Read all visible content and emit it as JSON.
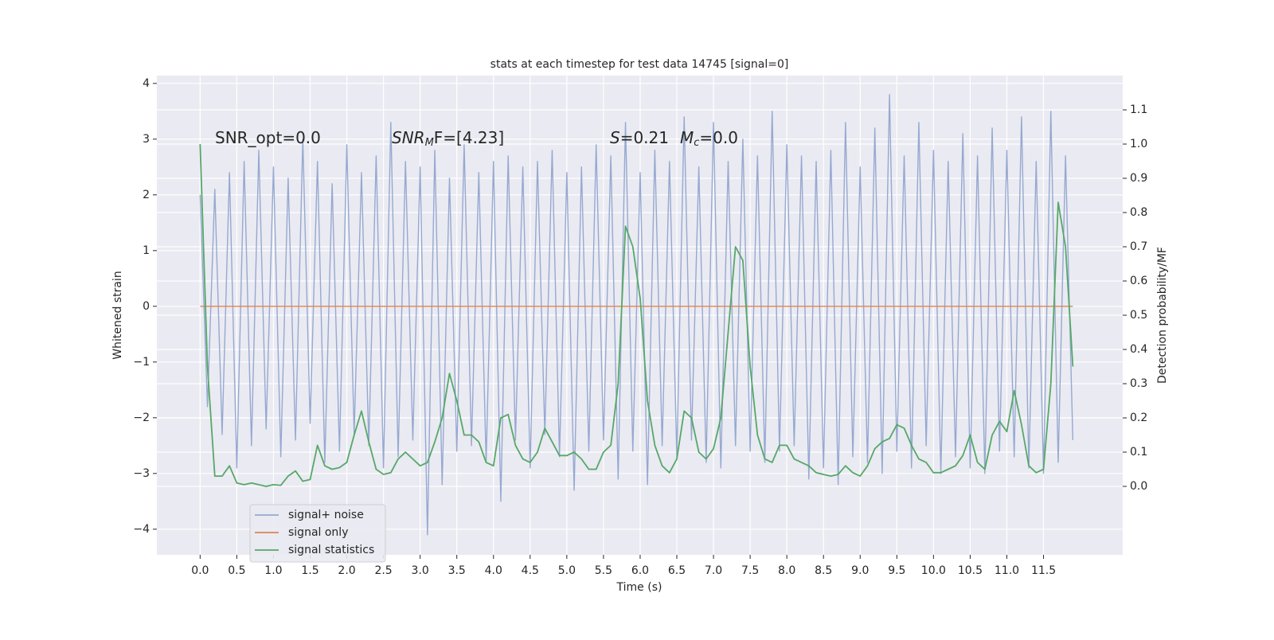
{
  "chart_data": {
    "type": "line",
    "title": "stats at each timestep for test data 14745 [signal=0]",
    "xlabel": "Time (s)",
    "ylabel": "Whitened strain",
    "y2label": "Detection probability/MF",
    "annotations": [
      [
        "SNR_opt=0.0"
      ],
      [
        "SNR",
        "M",
        "F=[4.23]"
      ],
      [
        "S",
        "=0.21",
        "M",
        "c",
        "=0.0"
      ]
    ],
    "grid": true,
    "legend": "lower left",
    "xlim": [
      -0.59,
      12.58
    ],
    "ylim": [
      -4.46,
      4.14
    ],
    "y2lim": [
      -0.2,
      1.2
    ],
    "xticks": [
      {
        "value": 0,
        "label": "0.0"
      },
      {
        "value": 0.5,
        "label": "0.5"
      },
      {
        "value": 1,
        "label": "1.0"
      },
      {
        "value": 1.5,
        "label": "1.5"
      },
      {
        "value": 2,
        "label": "2.0"
      },
      {
        "value": 2.5,
        "label": "2.5"
      },
      {
        "value": 3,
        "label": "3.0"
      },
      {
        "value": 3.5,
        "label": "3.5"
      },
      {
        "value": 4,
        "label": "4.0"
      },
      {
        "value": 4.5,
        "label": "4.5"
      },
      {
        "value": 5,
        "label": "5.0"
      },
      {
        "value": 5.5,
        "label": "5.5"
      },
      {
        "value": 6,
        "label": "6.0"
      },
      {
        "value": 6.5,
        "label": "6.5"
      },
      {
        "value": 7,
        "label": "7.0"
      },
      {
        "value": 7.5,
        "label": "7.5"
      },
      {
        "value": 8,
        "label": "8.0"
      },
      {
        "value": 8.5,
        "label": "8.5"
      },
      {
        "value": 9,
        "label": "9.0"
      },
      {
        "value": 9.5,
        "label": "9.5"
      },
      {
        "value": 10,
        "label": "10.0"
      },
      {
        "value": 10.5,
        "label": "10.5"
      },
      {
        "value": 11,
        "label": "11.0"
      },
      {
        "value": 11.5,
        "label": "11.5"
      }
    ],
    "yticks": [
      {
        "value": -4,
        "label": "−4"
      },
      {
        "value": -3,
        "label": "−3"
      },
      {
        "value": -2,
        "label": "−2"
      },
      {
        "value": -1,
        "label": "−1"
      },
      0,
      1,
      2,
      3,
      4
    ],
    "y2ticks": [
      {
        "value": 0,
        "label": "0.0"
      },
      {
        "value": 0.1,
        "label": "0.1"
      },
      {
        "value": 0.2,
        "label": "0.2"
      },
      {
        "value": 0.3,
        "label": "0.3"
      },
      {
        "value": 0.4,
        "label": "0.4"
      },
      {
        "value": 0.5,
        "label": "0.5"
      },
      {
        "value": 0.6,
        "label": "0.6"
      },
      {
        "value": 0.7,
        "label": "0.7"
      },
      {
        "value": 0.8,
        "label": "0.8"
      },
      {
        "value": 0.9,
        "label": "0.9"
      },
      {
        "value": 1,
        "label": "1.0"
      },
      {
        "value": 1.1,
        "label": "1.1"
      }
    ],
    "x": [
      0,
      0.1,
      0.2,
      0.3,
      0.4,
      0.5,
      0.6,
      0.7,
      0.8,
      0.9,
      1,
      1.1,
      1.2,
      1.3,
      1.4,
      1.5,
      1.6,
      1.7,
      1.8,
      1.9,
      2,
      2.1,
      2.2,
      2.3,
      2.4,
      2.5,
      2.6,
      2.7,
      2.8,
      2.9,
      3,
      3.1,
      3.2,
      3.3,
      3.4,
      3.5,
      3.6,
      3.7,
      3.8,
      3.9,
      4,
      4.1,
      4.2,
      4.3,
      4.4,
      4.5,
      4.6,
      4.7,
      4.8,
      4.9,
      5,
      5.1,
      5.2,
      5.3,
      5.4,
      5.5,
      5.6,
      5.7,
      5.8,
      5.9,
      6,
      6.1,
      6.2,
      6.3,
      6.4,
      6.5,
      6.6,
      6.7,
      6.8,
      6.9,
      7,
      7.1,
      7.2,
      7.3,
      7.4,
      7.5,
      7.6,
      7.7,
      7.8,
      7.9,
      8,
      8.1,
      8.2,
      8.3,
      8.4,
      8.5,
      8.6,
      8.7,
      8.8,
      8.9,
      9,
      9.1,
      9.2,
      9.3,
      9.4,
      9.5,
      9.6,
      9.7,
      9.8,
      9.9,
      10,
      10.1,
      10.2,
      10.3,
      10.4,
      10.5,
      10.6,
      10.7,
      10.8,
      10.9,
      11,
      11.1,
      11.2,
      11.3,
      11.4,
      11.5,
      11.6,
      11.7,
      11.8,
      11.9
    ],
    "series": [
      {
        "name": "signal+ noise",
        "color": "#96a9d0",
        "axis": "y",
        "values": [
          2.0,
          -1.8,
          2.1,
          -2.3,
          2.4,
          -2.9,
          2.6,
          -2.5,
          2.8,
          -2.2,
          2.5,
          -2.7,
          2.3,
          -2.4,
          3.0,
          -2.1,
          2.6,
          -2.8,
          2.2,
          -2.6,
          2.9,
          -2.3,
          2.4,
          -2.5,
          2.7,
          -2.9,
          3.3,
          -2.7,
          2.6,
          -2.4,
          2.5,
          -4.1,
          2.8,
          -3.2,
          2.3,
          -2.6,
          2.9,
          -2.5,
          2.4,
          -2.8,
          2.6,
          -3.5,
          2.7,
          -2.4,
          2.5,
          -2.9,
          2.6,
          -2.3,
          2.8,
          -2.7,
          2.4,
          -3.3,
          2.5,
          -2.6,
          2.9,
          -2.4,
          2.7,
          -3.1,
          3.3,
          -2.6,
          2.4,
          -3.2,
          2.8,
          -2.5,
          2.6,
          -2.7,
          3.4,
          -2.4,
          2.5,
          -2.8,
          3.3,
          -2.9,
          2.6,
          -2.5,
          3.0,
          -2.6,
          2.7,
          -2.8,
          3.5,
          -2.6,
          2.9,
          -2.5,
          2.7,
          -3.1,
          2.6,
          -2.9,
          2.8,
          -3.2,
          3.3,
          -2.7,
          2.5,
          -2.8,
          3.2,
          -3.0,
          3.8,
          -2.6,
          2.7,
          -2.9,
          3.3,
          -2.5,
          2.8,
          -3.0,
          2.6,
          -2.7,
          3.1,
          -2.9,
          2.7,
          -3.0,
          3.2,
          -2.6,
          2.8,
          -2.7,
          3.4,
          -2.9,
          2.6,
          -3.0,
          3.5,
          -2.8,
          2.7,
          -2.4
        ]
      },
      {
        "name": "signal only",
        "color": "#dd8452",
        "axis": "y",
        "values": [
          0,
          0,
          0,
          0,
          0,
          0,
          0,
          0,
          0,
          0,
          0,
          0,
          0,
          0,
          0,
          0,
          0,
          0,
          0,
          0,
          0,
          0,
          0,
          0,
          0,
          0,
          0,
          0,
          0,
          0,
          0,
          0,
          0,
          0,
          0,
          0,
          0,
          0,
          0,
          0,
          0,
          0,
          0,
          0,
          0,
          0,
          0,
          0,
          0,
          0,
          0,
          0,
          0,
          0,
          0,
          0,
          0,
          0,
          0,
          0,
          0,
          0,
          0,
          0,
          0,
          0,
          0,
          0,
          0,
          0,
          0,
          0,
          0,
          0,
          0,
          0,
          0,
          0,
          0,
          0,
          0,
          0,
          0,
          0,
          0,
          0,
          0,
          0,
          0,
          0,
          0,
          0,
          0,
          0,
          0,
          0,
          0,
          0,
          0,
          0,
          0,
          0,
          0,
          0,
          0,
          0,
          0,
          0,
          0,
          0,
          0,
          0,
          0,
          0,
          0,
          0,
          0,
          0,
          0,
          0
        ]
      },
      {
        "name": "signal statistics",
        "color": "#55a868",
        "axis": "y2",
        "values": [
          1.0,
          0.35,
          0.03,
          0.03,
          0.06,
          0.01,
          0.005,
          0.01,
          0.005,
          0.0,
          0.005,
          0.003,
          0.03,
          0.045,
          0.015,
          0.02,
          0.12,
          0.06,
          0.05,
          0.055,
          0.07,
          0.15,
          0.22,
          0.13,
          0.05,
          0.035,
          0.04,
          0.08,
          0.1,
          0.08,
          0.06,
          0.07,
          0.13,
          0.2,
          0.33,
          0.25,
          0.15,
          0.15,
          0.13,
          0.07,
          0.06,
          0.2,
          0.21,
          0.12,
          0.08,
          0.07,
          0.1,
          0.17,
          0.13,
          0.09,
          0.09,
          0.1,
          0.08,
          0.05,
          0.05,
          0.1,
          0.12,
          0.3,
          0.76,
          0.7,
          0.55,
          0.25,
          0.12,
          0.06,
          0.04,
          0.08,
          0.22,
          0.2,
          0.1,
          0.08,
          0.11,
          0.2,
          0.45,
          0.7,
          0.66,
          0.35,
          0.15,
          0.08,
          0.07,
          0.12,
          0.12,
          0.08,
          0.07,
          0.06,
          0.04,
          0.035,
          0.03,
          0.035,
          0.06,
          0.04,
          0.03,
          0.06,
          0.11,
          0.13,
          0.14,
          0.18,
          0.17,
          0.12,
          0.08,
          0.07,
          0.04,
          0.04,
          0.05,
          0.06,
          0.09,
          0.15,
          0.07,
          0.05,
          0.15,
          0.19,
          0.16,
          0.28,
          0.18,
          0.06,
          0.04,
          0.05,
          0.3,
          0.83,
          0.7,
          0.35
        ]
      }
    ]
  }
}
